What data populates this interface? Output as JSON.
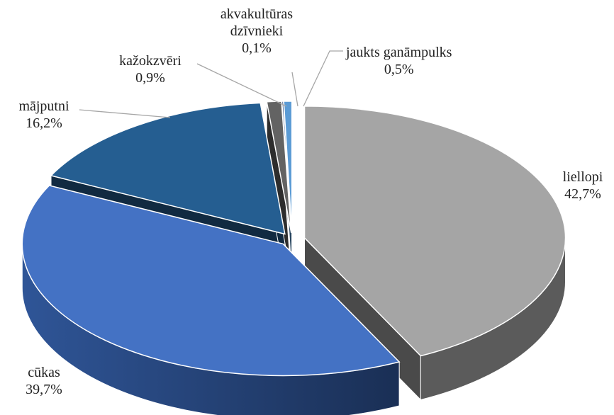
{
  "chart_data": {
    "type": "pie3d",
    "categories": [
      "liellopi",
      "cūkas",
      "mājputni",
      "kažokzvēri",
      "akvakultūras dzīvnieki",
      "jaukts ganāmpulks"
    ],
    "values": [
      42.7,
      39.7,
      16.2,
      0.9,
      0.1,
      0.5
    ],
    "value_labels": [
      "42,7%",
      "39,7%",
      "16,2%",
      "0,9%",
      "0,1%",
      "0,5%"
    ],
    "colors": [
      "#a5a5a5",
      "#4472c4",
      "#255e91",
      "#636363",
      "#264478",
      "#5b9bd5"
    ]
  }
}
